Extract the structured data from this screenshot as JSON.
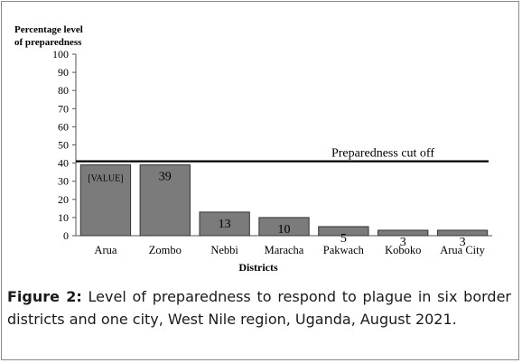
{
  "chart_data": {
    "type": "bar",
    "title": "",
    "ylabel_line1": "Percentage level",
    "ylabel_line2": "of preparedness",
    "xlabel": "Districts",
    "ylim": [
      0,
      100
    ],
    "yticks": [
      0,
      10,
      20,
      30,
      40,
      50,
      60,
      70,
      80,
      90,
      100
    ],
    "categories": [
      "Arua",
      "Zombo",
      "Nebbi",
      "Maracha",
      "Pakwach",
      "Koboko",
      "Arua City"
    ],
    "values": [
      39,
      39,
      13,
      10,
      5,
      3,
      3
    ],
    "data_labels": [
      "[VALUE]",
      "39",
      "13",
      "10",
      "5",
      "3",
      "3"
    ],
    "bar_color": "#7b7b7b",
    "reference_line": {
      "value": 41,
      "label": "Preparedness cut off",
      "color": "#000000"
    }
  },
  "caption": {
    "label": "Figure 2:",
    "text": " Level of preparedness to respond to plague in six border districts and one city, West Nile region, Uganda, August 2021."
  }
}
